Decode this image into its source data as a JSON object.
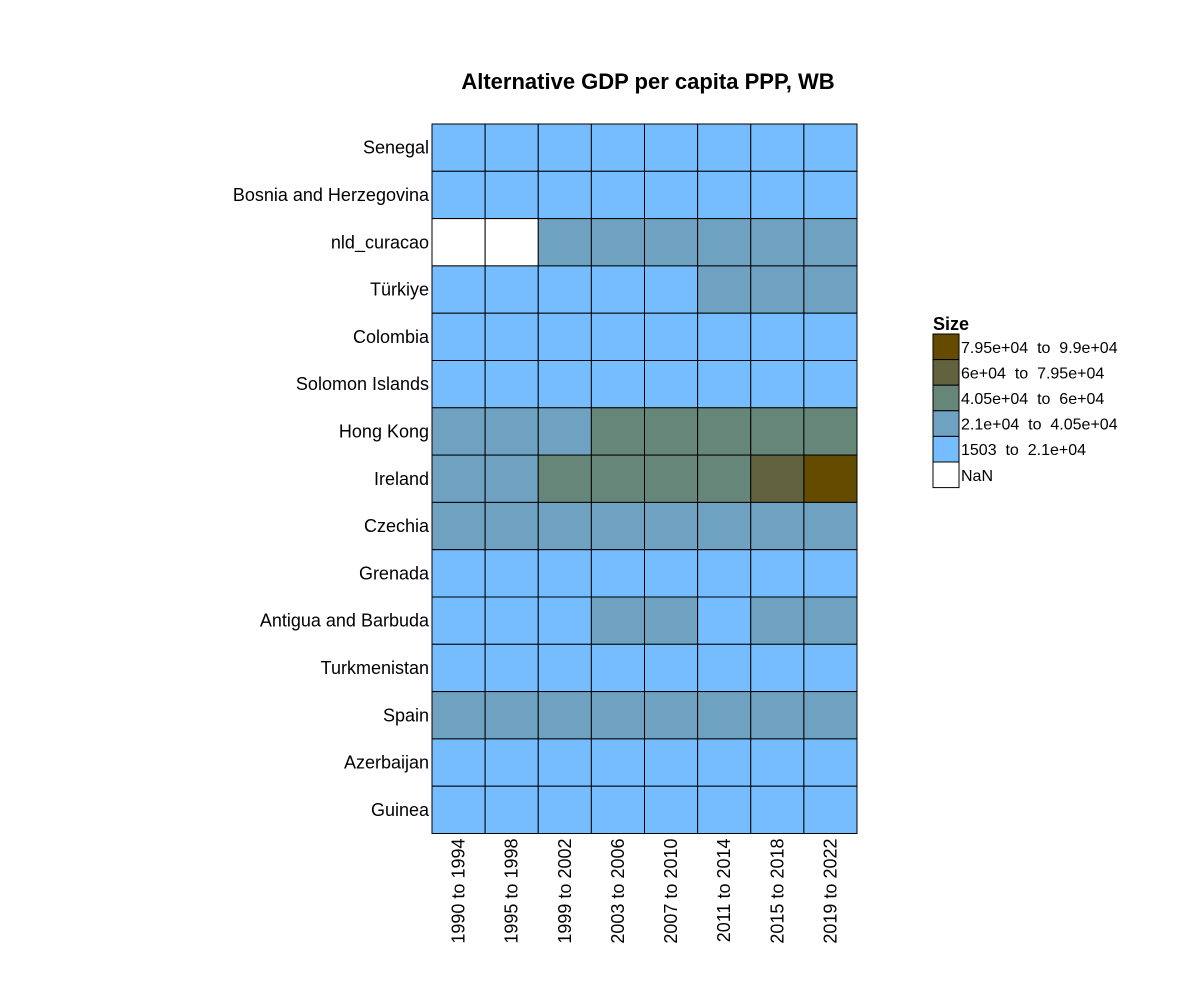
{
  "chart_data": {
    "type": "heatmap",
    "title": "Alternative GDP per capita PPP, WB",
    "columns": [
      "1990 to 1994",
      "1995 to 1998",
      "1999 to 2002",
      "2003 to 2006",
      "2007 to 2010",
      "2011 to 2014",
      "2015 to 2018",
      "2019 to 2022"
    ],
    "rows": [
      "Senegal",
      "Bosnia and Herzegovina",
      "nld_curacao",
      "Türkiye",
      "Colombia",
      "Solomon Islands",
      "Hong Kong",
      "Ireland",
      "Czechia",
      "Grenada",
      "Antigua and Barbuda",
      "Turkmenistan",
      "Spain",
      "Azerbaijan",
      "Guinea"
    ],
    "cells": [
      [
        0,
        0,
        0,
        0,
        0,
        0,
        0,
        0
      ],
      [
        0,
        0,
        0,
        0,
        0,
        0,
        0,
        0
      ],
      [
        -1,
        -1,
        1,
        1,
        1,
        1,
        1,
        1
      ],
      [
        0,
        0,
        0,
        0,
        0,
        1,
        1,
        1
      ],
      [
        0,
        0,
        0,
        0,
        0,
        0,
        0,
        0
      ],
      [
        0,
        0,
        0,
        0,
        0,
        0,
        0,
        0
      ],
      [
        1,
        1,
        1,
        2,
        2,
        2,
        2,
        2
      ],
      [
        1,
        1,
        2,
        2,
        2,
        2,
        3,
        4
      ],
      [
        1,
        1,
        1,
        1,
        1,
        1,
        1,
        1
      ],
      [
        0,
        0,
        0,
        0,
        0,
        0,
        0,
        0
      ],
      [
        0,
        0,
        0,
        1,
        1,
        0,
        1,
        1
      ],
      [
        0,
        0,
        0,
        0,
        0,
        0,
        0,
        0
      ],
      [
        1,
        1,
        1,
        1,
        1,
        1,
        1,
        1
      ],
      [
        0,
        0,
        0,
        0,
        0,
        0,
        0,
        0
      ],
      [
        0,
        0,
        0,
        0,
        0,
        0,
        0,
        0
      ]
    ],
    "legend": {
      "title": "Size",
      "position": "right",
      "bins": [
        {
          "label": "7.95e+04  to  9.9e+04",
          "color": "#654b00"
        },
        {
          "label": "6e+04  to  7.95e+04",
          "color": "#63623e"
        },
        {
          "label": "4.05e+04  to  6e+04",
          "color": "#67867a"
        },
        {
          "label": "2.1e+04  to  4.05e+04",
          "color": "#6fa2c0"
        },
        {
          "label": "1503  to  2.1e+04",
          "color": "#75bdff"
        },
        {
          "label": "NaN",
          "color": "#ffffff"
        }
      ]
    },
    "category_colors": {
      "-1": "#ffffff",
      "0": "#75bdff",
      "1": "#6fa2c0",
      "2": "#67867a",
      "3": "#63623e",
      "4": "#654b00"
    }
  }
}
